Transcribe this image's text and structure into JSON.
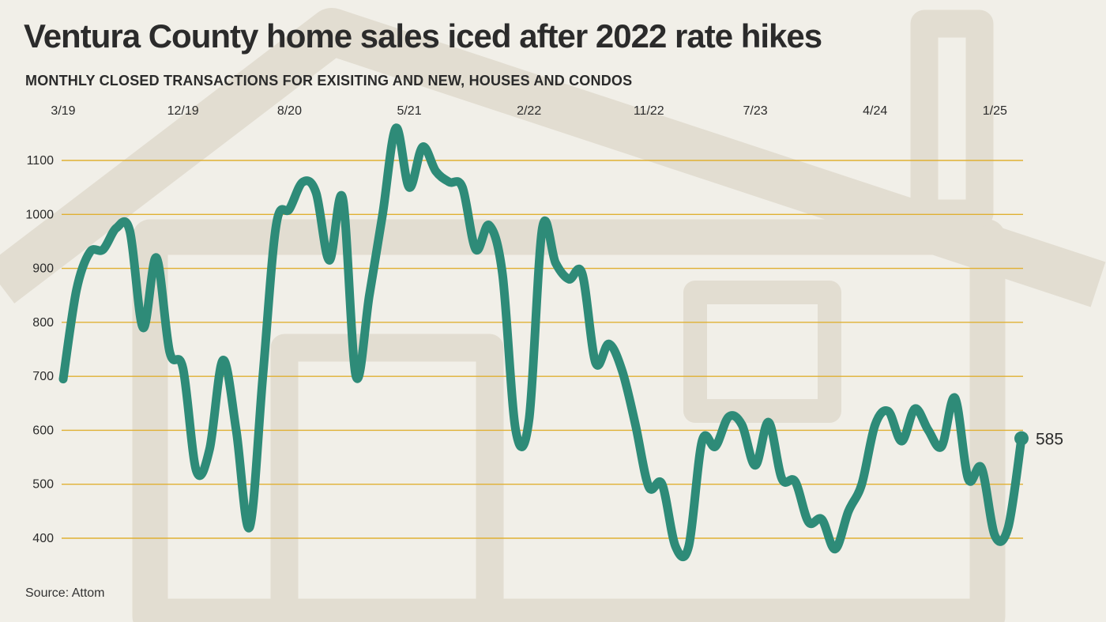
{
  "chart_data": {
    "type": "line",
    "title": "Ventura County home sales iced after 2022 rate hikes",
    "subtitle": "MONTHLY CLOSED TRANSACTIONS FOR EXISITING AND NEW, HOUSES AND CONDOS",
    "source": "Source: Attom",
    "xlabel": "",
    "ylabel": "",
    "ylim": [
      375,
      1170
    ],
    "y_ticks": [
      400,
      500,
      600,
      700,
      800,
      900,
      1000,
      1100
    ],
    "x_tick_labels": [
      "3/19",
      "12/19",
      "8/20",
      "5/21",
      "2/22",
      "11/22",
      "7/23",
      "4/24",
      "1/25"
    ],
    "x_tick_index": [
      0,
      9,
      17,
      26,
      35,
      44,
      52,
      61,
      70
    ],
    "grid": true,
    "colors": {
      "line": "#2e8b78",
      "grid": "#e0b033",
      "text": "#2b2b2b"
    },
    "series": [
      {
        "values": [
          695,
          860,
          930,
          935,
          975,
          970,
          790,
          920,
          745,
          715,
          525,
          565,
          730,
          600,
          420,
          700,
          980,
          1010,
          1060,
          1040,
          915,
          1030,
          700,
          850,
          1000,
          1160,
          1050,
          1125,
          1080,
          1060,
          1050,
          935,
          980,
          890,
          600,
          620,
          975,
          910,
          880,
          890,
          725,
          760,
          710,
          610,
          495,
          500,
          385,
          385,
          580,
          570,
          625,
          610,
          535,
          615,
          510,
          505,
          430,
          435,
          380,
          450,
          500,
          610,
          635,
          580,
          640,
          600,
          570,
          660,
          510,
          530,
          405,
          420,
          585
        ]
      }
    ],
    "end_label": {
      "text": "585"
    }
  }
}
